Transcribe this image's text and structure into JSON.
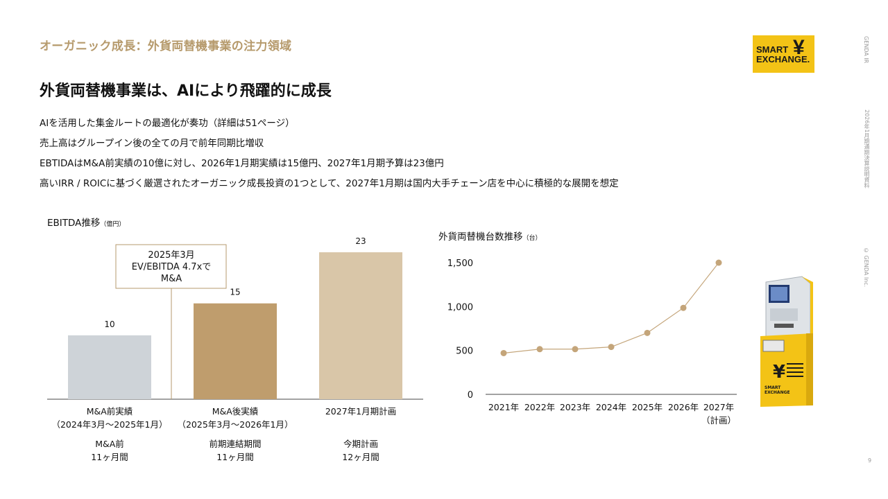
{
  "header": {
    "section_title": "オーガニック成長：外貨両替機事業の注力領域",
    "headline": "外貨両替機事業は、AIにより飛躍的に成長",
    "bullets": [
      "AIを活用した集金ルートの最適化が奏功（詳細は51ページ）",
      "売上高はグループイン後の全ての月で前年同期比増収",
      "EBTIDAはM&A前実績の10億に対し、2026年1月期実績は15億円、2027年1月期予算は23億円",
      "高いIRR / ROICに基づく厳選されたオーガニック成長投資の1つとして、2027年1月期は国内大手チェーン店を中心に積極的な展開を想定"
    ]
  },
  "logo": {
    "line1": "SMART",
    "line2": "EXCHANGE.",
    "mark": "¥"
  },
  "side": {
    "brand": "GENDA IR",
    "doc": "2026年1月期通期決算説明資料",
    "copyright": "© GENDA Inc.",
    "page": "9"
  },
  "colors": {
    "accent": "#b69a6c",
    "bar1": "#ced3d8",
    "bar2": "#bf9d6d",
    "bar3": "#d9c6a8",
    "line": "#c4a57a",
    "logo_bg": "#f3c316"
  },
  "kiosk_icon": "currency-exchange-machine-icon",
  "chart_data": [
    {
      "type": "bar",
      "title": "EBITDA推移",
      "unit": "（億円）",
      "categories": [
        "M&A前実績",
        "M&A後実績",
        "2027年1月期計画"
      ],
      "category_sub": [
        "（2024年3月～2025年1月）",
        "（2025年3月～2026年1月）",
        ""
      ],
      "period_labels": [
        [
          "M&A前",
          "11ヶ月間"
        ],
        [
          "前期連結期間",
          "11ヶ月間"
        ],
        [
          "今期計画",
          "12ヶ月間"
        ]
      ],
      "values": [
        10,
        15,
        23
      ],
      "ylim": [
        0,
        23
      ],
      "annotation": [
        "2025年3月",
        "EV/EBITDA 4.7xで",
        "M&A"
      ]
    },
    {
      "type": "line",
      "title": "外貨両替機台数推移",
      "unit": "（台）",
      "x": [
        "2021年",
        "2022年",
        "2023年",
        "2024年",
        "2025年",
        "2026年",
        "2027年"
      ],
      "x_sub": [
        "",
        "",
        "",
        "",
        "",
        "",
        "（計画）"
      ],
      "values": [
        470,
        515,
        515,
        540,
        700,
        985,
        1500
      ],
      "yticks": [
        "0",
        "500",
        "1,000",
        "1,500"
      ],
      "ylim": [
        0,
        1500
      ]
    }
  ]
}
